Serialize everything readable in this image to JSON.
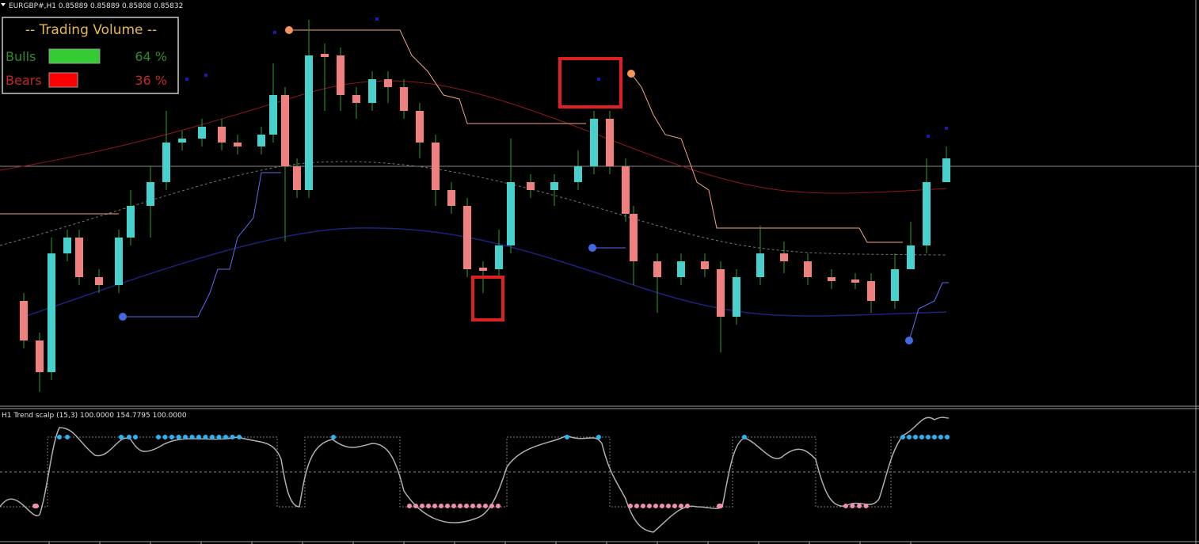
{
  "symbol_header": "EURGBP#,H1  0.85889 0.85889 0.85808 0.85832",
  "volume_panel": {
    "title": "-- Trading Volume --",
    "rows": [
      {
        "name": "Bulls",
        "value": 64,
        "value_label": "64 %",
        "color": "#33cc33",
        "text_color": "#2e8b2e"
      },
      {
        "name": "Bears",
        "value": 36,
        "value_label": "36 %",
        "color": "#ff0000",
        "text_color": "#c0282a"
      }
    ]
  },
  "indicator_header": "H1 Trend scalp (15,3) 100.0000 154.7795 100.0000"
}
